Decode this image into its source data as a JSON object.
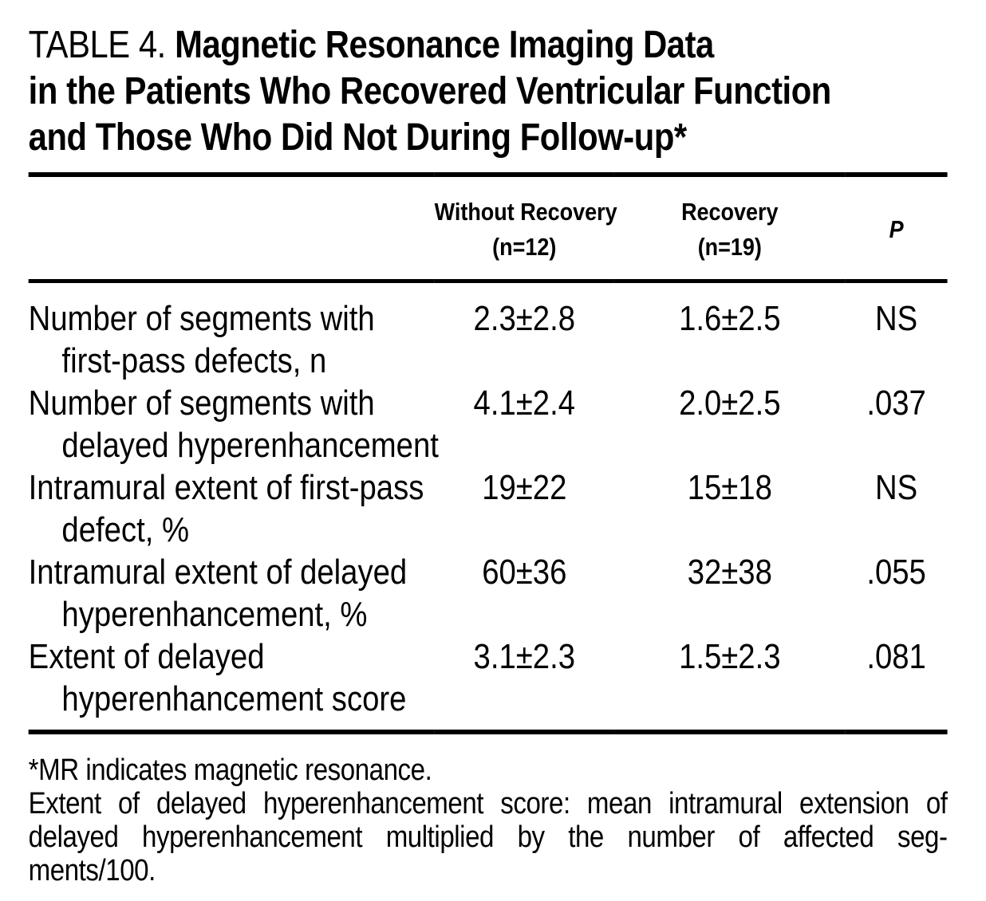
{
  "title": {
    "prefix": "TABLE 4.",
    "lines": [
      "Magnetic Resonance Imaging Data",
      "in the Patients Who Recovered Ventricular Function",
      "and Those Who Did Not During Follow-up*"
    ]
  },
  "table": {
    "columns": {
      "without_recovery": {
        "line1": "Without Recovery",
        "line2": "(n=12)"
      },
      "recovery": {
        "line1": "Recovery",
        "line2": "(n=19)"
      },
      "p": "P"
    },
    "rows": [
      {
        "label_line1": "Number of segments with",
        "label_line2": "first-pass defects, n",
        "without_recovery": "2.3±2.8",
        "recovery": "1.6±2.5",
        "p": "NS"
      },
      {
        "label_line1": "Number of segments with",
        "label_line2": "delayed hyperenhancement",
        "without_recovery": "4.1±2.4",
        "recovery": "2.0±2.5",
        "p": ".037"
      },
      {
        "label_line1": "Intramural extent of first-pass",
        "label_line2": "defect, %",
        "without_recovery": "19±22",
        "recovery": "15±18",
        "p": "NS"
      },
      {
        "label_line1": "Intramural extent of delayed",
        "label_line2": "hyperenhancement, %",
        "without_recovery": "60±36",
        "recovery": "32±38",
        "p": ".055"
      },
      {
        "label_line1": "Extent of delayed",
        "label_line2": "hyperenhancement score",
        "without_recovery": "3.1±2.3",
        "recovery": "1.5±2.3",
        "p": ".081"
      }
    ]
  },
  "footnotes": {
    "asterisk_note": "*MR indicates magnetic resonance.",
    "definition_lines": [
      "Extent of delayed hyperenhancement score: mean intramural extension of",
      "delayed hyperenhancement multiplied by the number of affected seg-",
      "ments/100."
    ]
  },
  "colors": {
    "text": "#000000",
    "background": "#ffffff",
    "rule": "#000000"
  }
}
